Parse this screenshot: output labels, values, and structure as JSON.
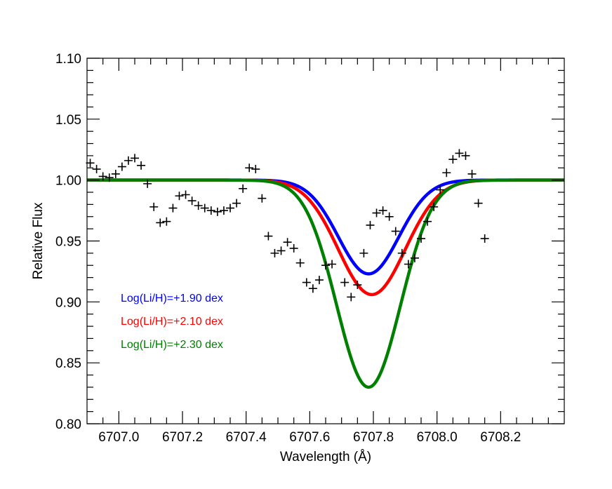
{
  "chart_data": {
    "type": "line",
    "title": "",
    "xlabel": "Wavelength (Å)",
    "ylabel": "Relative Flux",
    "xlim": [
      6706.9,
      6708.4
    ],
    "ylim": [
      0.8,
      1.1
    ],
    "x_ticks": [
      6707.0,
      6707.2,
      6707.4,
      6707.6,
      6707.8,
      6708.0,
      6708.2
    ],
    "x_tick_labels": [
      "6707.0",
      "6707.2",
      "6707.4",
      "6707.6",
      "6707.8",
      "6708.0",
      "6708.2"
    ],
    "y_ticks": [
      0.8,
      0.85,
      0.9,
      0.95,
      1.0,
      1.05,
      1.1
    ],
    "y_tick_labels": [
      "0.80",
      "0.85",
      "0.90",
      "0.95",
      "1.00",
      "1.05",
      "1.10"
    ],
    "grid": false,
    "legend_position": "lower-left",
    "observed": {
      "marker": "plus",
      "color": "#000000",
      "points": [
        [
          6706.91,
          1.014
        ],
        [
          6706.93,
          1.009
        ],
        [
          6706.95,
          1.003
        ],
        [
          6706.97,
          1.002
        ],
        [
          6706.99,
          1.005
        ],
        [
          6707.01,
          1.011
        ],
        [
          6707.03,
          1.016
        ],
        [
          6707.05,
          1.018
        ],
        [
          6707.07,
          1.012
        ],
        [
          6707.09,
          0.997
        ],
        [
          6707.11,
          0.978
        ],
        [
          6707.13,
          0.965
        ],
        [
          6707.15,
          0.966
        ],
        [
          6707.17,
          0.977
        ],
        [
          6707.19,
          0.987
        ],
        [
          6707.21,
          0.988
        ],
        [
          6707.23,
          0.983
        ],
        [
          6707.25,
          0.979
        ],
        [
          6707.27,
          0.977
        ],
        [
          6707.29,
          0.975
        ],
        [
          6707.31,
          0.974
        ],
        [
          6707.33,
          0.975
        ],
        [
          6707.35,
          0.977
        ],
        [
          6707.37,
          0.981
        ],
        [
          6707.39,
          0.993
        ],
        [
          6707.41,
          1.01
        ],
        [
          6707.43,
          1.009
        ],
        [
          6707.45,
          0.985
        ],
        [
          6707.47,
          0.954
        ],
        [
          6707.49,
          0.94
        ],
        [
          6707.51,
          0.942
        ],
        [
          6707.53,
          0.949
        ],
        [
          6707.55,
          0.944
        ],
        [
          6707.57,
          0.932
        ],
        [
          6707.59,
          0.916
        ],
        [
          6707.61,
          0.911
        ],
        [
          6707.63,
          0.918
        ],
        [
          6707.65,
          0.93
        ],
        [
          6707.67,
          0.931
        ],
        [
          6707.71,
          0.916
        ],
        [
          6707.73,
          0.904
        ],
        [
          6707.75,
          0.914
        ],
        [
          6707.77,
          0.94
        ],
        [
          6707.79,
          0.963
        ],
        [
          6707.81,
          0.973
        ],
        [
          6707.83,
          0.975
        ],
        [
          6707.85,
          0.97
        ],
        [
          6707.87,
          0.958
        ],
        [
          6707.89,
          0.94
        ],
        [
          6707.91,
          0.931
        ],
        [
          6707.93,
          0.936
        ],
        [
          6707.95,
          0.952
        ],
        [
          6707.97,
          0.966
        ],
        [
          6707.99,
          0.978
        ],
        [
          6708.01,
          0.992
        ],
        [
          6708.03,
          1.006
        ],
        [
          6708.05,
          1.017
        ],
        [
          6708.07,
          1.022
        ],
        [
          6708.09,
          1.02
        ],
        [
          6708.11,
          1.005
        ],
        [
          6708.13,
          0.981
        ],
        [
          6708.15,
          0.952
        ]
      ]
    },
    "series": [
      {
        "name": "Log(Li/H)=+1.90 dex",
        "color": "#0000ff",
        "center": 6707.785,
        "depth": 0.077,
        "sigma": 0.095
      },
      {
        "name": "Log(Li/H)=+2.10 dex",
        "color": "#ff0000",
        "center": 6707.795,
        "depth": 0.094,
        "sigma": 0.105
      },
      {
        "name": "Log(Li/H)=+2.30 dex",
        "color": "#008000",
        "center": 6707.785,
        "depth": 0.17,
        "sigma": 0.1
      }
    ]
  }
}
